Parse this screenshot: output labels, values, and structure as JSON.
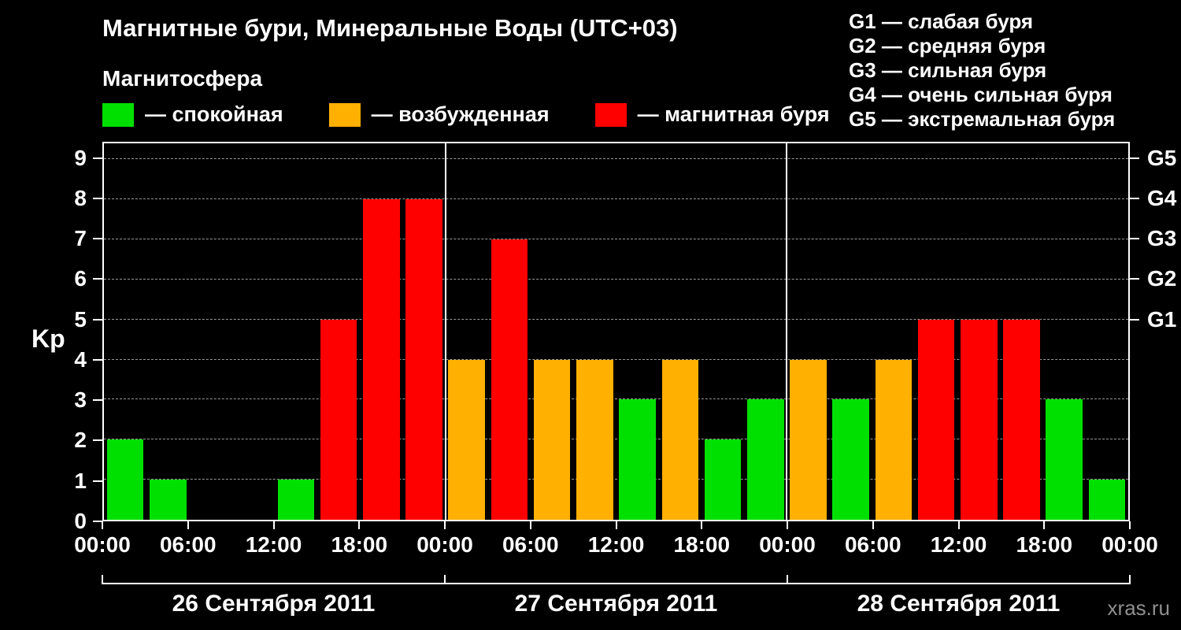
{
  "header": {
    "title": "Магнитные бури, Минеральные Воды (UTC+03)",
    "subtitle": "Магнитосфера"
  },
  "legend": {
    "items": [
      {
        "name": "quiet",
        "label": "— спокойная",
        "color": "#00e000"
      },
      {
        "name": "excited",
        "label": "— возбужденная",
        "color": "#ffb000"
      },
      {
        "name": "storm",
        "label": "— магнитная буря",
        "color": "#ff0000"
      }
    ]
  },
  "g_scale_legend": {
    "lines": [
      "G1 — слабая буря",
      "G2 — средняя буря",
      "G3 — сильная буря",
      "G4 — очень сильная буря",
      "G5 — экстремальная буря"
    ]
  },
  "chart_data": {
    "type": "bar",
    "title": "Магнитные бури, Минеральные Воды (UTC+03)",
    "ylabel": "Kp",
    "ylim": [
      0,
      9.4
    ],
    "interval_hours": 3,
    "grid": "dashed horizontal at each integer Kp",
    "y_ticks": [
      0,
      1,
      2,
      3,
      4,
      5,
      6,
      7,
      8,
      9
    ],
    "right_ticks": [
      {
        "level": 5,
        "label": "G1"
      },
      {
        "level": 6,
        "label": "G2"
      },
      {
        "level": 7,
        "label": "G3"
      },
      {
        "level": 8,
        "label": "G4"
      },
      {
        "level": 9,
        "label": "G5"
      }
    ],
    "x_tick_labels": [
      "00:00",
      "06:00",
      "12:00",
      "18:00",
      "00:00",
      "06:00",
      "12:00",
      "18:00",
      "00:00",
      "06:00",
      "12:00",
      "18:00",
      "00:00"
    ],
    "days": [
      {
        "date": "26 Сентября 2011",
        "kp_values": [
          2,
          1,
          0,
          0,
          1,
          5,
          8,
          8
        ]
      },
      {
        "date": "27 Сентября 2011",
        "kp_values": [
          4,
          7,
          4,
          4,
          3,
          4,
          2,
          3
        ]
      },
      {
        "date": "28 Сентября 2011",
        "kp_values": [
          4,
          3,
          4,
          5,
          5,
          5,
          3,
          1
        ]
      }
    ],
    "color_thresholds": {
      "quiet_max": 3,
      "excited_max": 4
    },
    "colors": {
      "quiet": "#00e000",
      "excited": "#ffb000",
      "storm": "#ff0000"
    }
  },
  "watermark": "xras.ru"
}
